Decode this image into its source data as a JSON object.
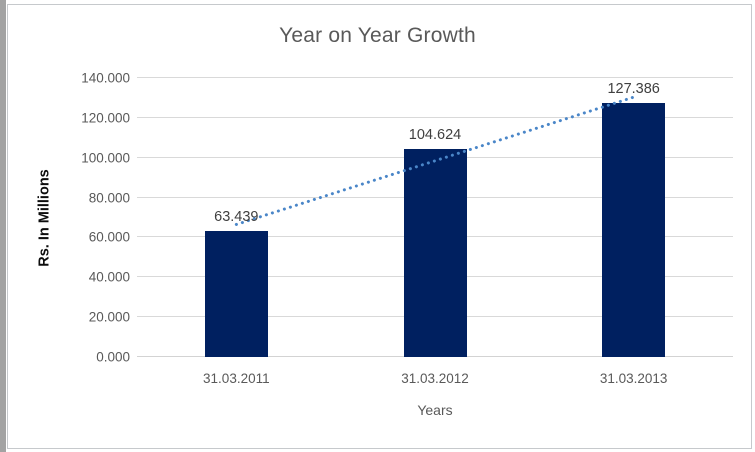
{
  "chart_data": {
    "type": "bar",
    "title": "Year on Year Growth",
    "xlabel": "Years",
    "ylabel": "Rs. In Millions",
    "categories": [
      "31.03.2011",
      "31.03.2012",
      "31.03.2013"
    ],
    "values": [
      63.439,
      104.624,
      127.386
    ],
    "data_labels": [
      "63.439",
      "104.624",
      "127.386"
    ],
    "ylim": [
      0,
      140
    ],
    "ytick_step": 20,
    "ytick_labels": [
      "0.000",
      "20.000",
      "40.000",
      "60.000",
      "80.000",
      "100.000",
      "120.000",
      "140.000"
    ],
    "grid": "horizontal",
    "legend": "none",
    "trendline": {
      "type": "linear",
      "style": "dotted",
      "start_value": 66.5,
      "end_value": 130.4
    },
    "colors": {
      "bar": "#002060",
      "trendline": "#4a86c8",
      "gridline": "#d9d9d9",
      "axis_line": "#d3d3d3",
      "title_text": "#595959",
      "tick_text": "#595959",
      "data_label_text": "#404040",
      "axis_title_text": "#595959",
      "y_axis_title_text": "#0d0d0d",
      "frame_border": "#c6c9cc",
      "background": "#ffffff"
    }
  }
}
